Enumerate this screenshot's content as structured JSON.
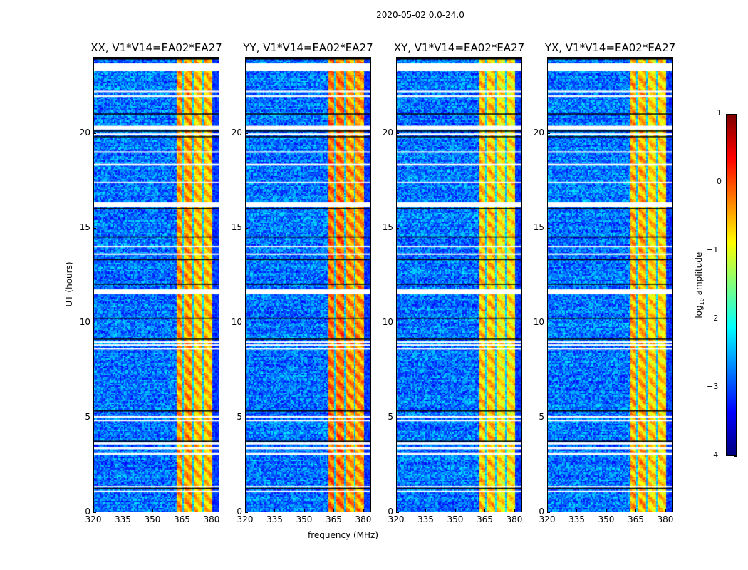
{
  "suptitle": "2020-05-02 0.0-24.0",
  "chart_data": {
    "type": "heatmap",
    "title": "2020-05-02 0.0-24.0",
    "xlabel": "frequency (MHz)",
    "ylabel": "UT (hours)",
    "xlim": [
      320,
      384
    ],
    "ylim": [
      0,
      24
    ],
    "xticks": [
      "320",
      "335",
      "350",
      "365",
      "380"
    ],
    "xtick_values": [
      320,
      335,
      350,
      365,
      380
    ],
    "yticks": [
      "0",
      "5",
      "10",
      "15",
      "20"
    ],
    "ytick_values": [
      0,
      5,
      10,
      15,
      20
    ],
    "panels": [
      {
        "title": "XX, V1*V14=EA02*EA27",
        "band_level": -0.6
      },
      {
        "title": "YY, V1*V14=EA02*EA27",
        "band_level": -0.4
      },
      {
        "title": "XY, V1*V14=EA02*EA27",
        "band_level": -0.8
      },
      {
        "title": "YX, V1*V14=EA02*EA27",
        "band_level": -0.7
      }
    ],
    "background_level": -2.8,
    "rfi_band_mhz": [
      362,
      380
    ],
    "rfi_gaps_mhz": [
      365.5,
      370.5,
      375.5
    ],
    "flagged_hours": [
      [
        23.3,
        23.7
      ],
      [
        22.2,
        22.25
      ],
      [
        21.95,
        22.0
      ],
      [
        20.2,
        20.4
      ],
      [
        19.9,
        20.0
      ],
      [
        18.3,
        18.4
      ],
      [
        16.1,
        16.35
      ],
      [
        11.5,
        11.75
      ],
      [
        8.6,
        8.65
      ],
      [
        8.8,
        8.85
      ],
      [
        8.95,
        9.0
      ],
      [
        3.0,
        3.1
      ],
      [
        3.3,
        3.4
      ],
      [
        3.55,
        3.65
      ],
      [
        1.3,
        1.35
      ],
      [
        1.05,
        1.1
      ],
      [
        5.0,
        5.05
      ],
      [
        4.8,
        4.85
      ],
      [
        13.6,
        13.65
      ],
      [
        14.0,
        14.05
      ],
      [
        17.4,
        17.45
      ],
      [
        19.0,
        19.05
      ]
    ],
    "black_hours": [
      [
        23.9,
        24.0
      ],
      [
        20.1,
        20.15
      ],
      [
        19.8,
        19.85
      ],
      [
        16.0,
        16.05
      ],
      [
        13.3,
        13.35
      ],
      [
        12.0,
        12.05
      ],
      [
        9.1,
        9.15
      ],
      [
        5.3,
        5.35
      ],
      [
        3.7,
        3.75
      ],
      [
        1.2,
        1.25
      ],
      [
        21.0,
        21.05
      ],
      [
        14.5,
        14.55
      ],
      [
        10.2,
        10.25
      ]
    ],
    "colorbar": {
      "label": "log10 amplitude",
      "label_main": "log",
      "label_sub": "10",
      "label_rest": " amplitude",
      "range": [
        -4,
        1
      ],
      "colormap": "jet",
      "ticks": [
        "1",
        "0",
        "−1",
        "−2",
        "−3",
        "−4"
      ],
      "tick_values": [
        1,
        0,
        -1,
        -2,
        -3,
        -4
      ]
    }
  }
}
